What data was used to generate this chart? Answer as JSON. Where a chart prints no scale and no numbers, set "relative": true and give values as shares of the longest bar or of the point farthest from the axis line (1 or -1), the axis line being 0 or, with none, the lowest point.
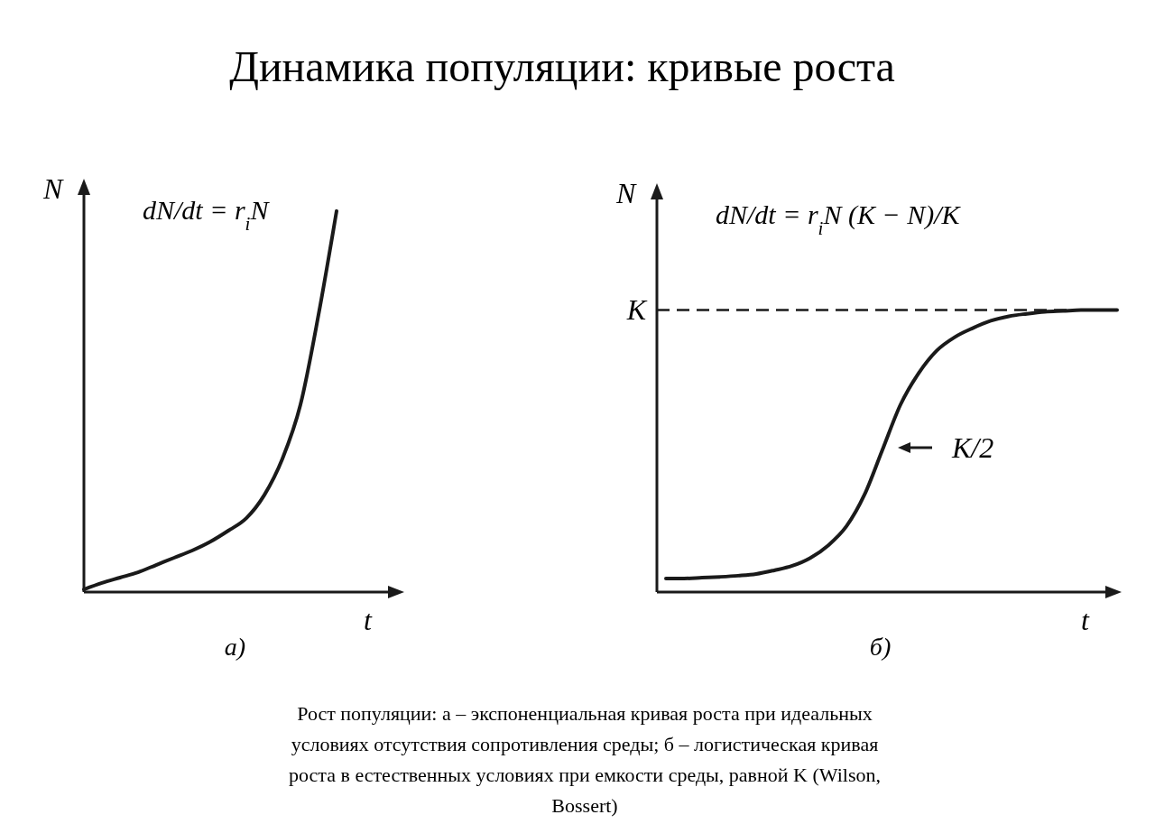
{
  "chart_data": [
    {
      "type": "line",
      "title": "Динамика популяции: кривые роста",
      "xlabel": "t",
      "ylabel": "N",
      "relative": true,
      "color": "#1a1a1a",
      "categories": [
        null,
        null,
        null,
        null,
        null,
        null,
        null,
        null,
        null,
        null,
        null,
        null,
        null,
        null,
        null,
        null,
        null,
        null,
        null
      ],
      "values": [
        0.007,
        0.024,
        0.038,
        0.052,
        0.071,
        0.09,
        0.109,
        0.132,
        0.161,
        0.194,
        0.255,
        0.35,
        0.492,
        0.728,
        1,
        null,
        null,
        null,
        null
      ],
      "annotations": [
        "dN/dt = r$_{i}$N",
        "а)"
      ]
    },
    {
      "type": "line",
      "xlabel": "t",
      "ylabel": "N",
      "relative": true,
      "color": "#1a1a1a",
      "categories": [
        null,
        null,
        null,
        null,
        null,
        null,
        null,
        null,
        null,
        null,
        null,
        null,
        null,
        null,
        null,
        null,
        null,
        null,
        null,
        null,
        null,
        null,
        null,
        null,
        null,
        null
      ],
      "values": [
        0.048,
        0.048,
        0.051,
        0.054,
        0.058,
        0.064,
        0.077,
        0.093,
        0.121,
        0.166,
        0.233,
        0.345,
        0.505,
        0.665,
        0.776,
        0.856,
        0.904,
        0.936,
        0.962,
        0.978,
        0.987,
        0.994,
        0.997,
        1,
        1,
        1
      ],
      "ref_lines": [
        {
          "axis": "y",
          "value": 1,
          "label": "K",
          "line_style": "dashed"
        }
      ],
      "annotations": [
        "dN/dt = r$_{i}$N (K − N)/K",
        "б)",
        "K/2",
        "Рост популяции: а – экспоненциальная кривая роста при идеальных условиях отсутствия сопротивления среды; б – логистическая кривая роста в естественных условиях при емкости среды, равной K (Wilson, Bossert)"
      ]
    }
  ]
}
